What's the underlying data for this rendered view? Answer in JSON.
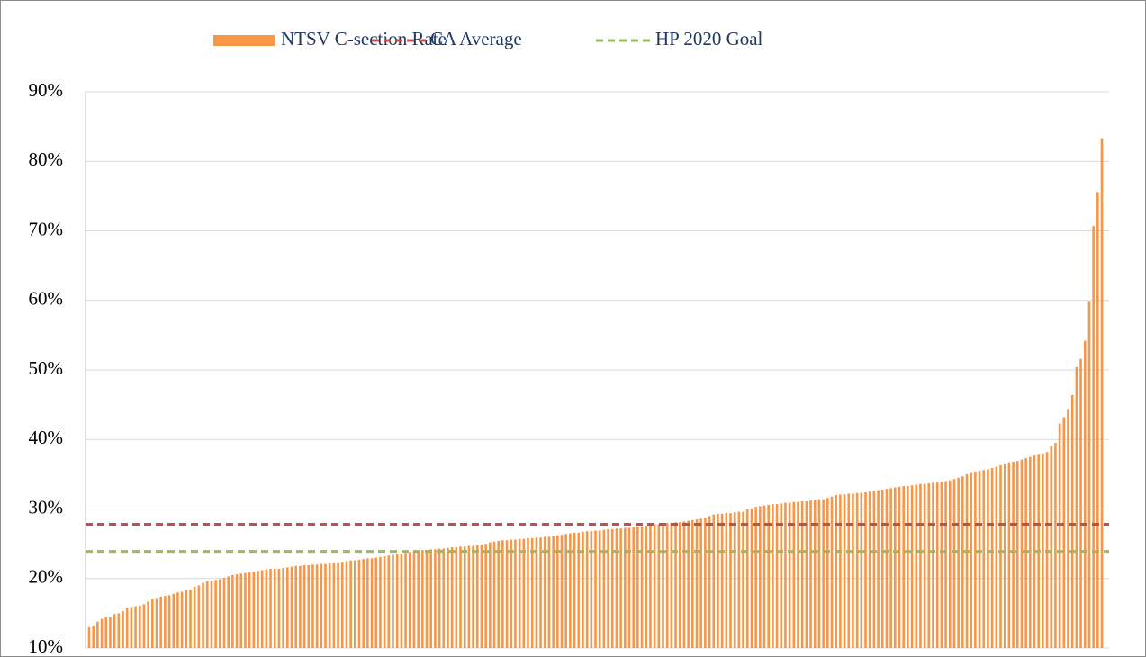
{
  "chart_data": {
    "type": "bar",
    "series": [
      {
        "name": "NTSV C-section Rate",
        "color": "#f79646",
        "values": [
          13.0,
          13.2,
          13.8,
          14.2,
          14.4,
          14.5,
          14.9,
          15.0,
          15.3,
          15.8,
          15.9,
          16.0,
          16.1,
          16.3,
          16.7,
          17.0,
          17.2,
          17.4,
          17.5,
          17.6,
          17.8,
          18.0,
          18.1,
          18.3,
          18.4,
          18.8,
          19.0,
          19.4,
          19.6,
          19.7,
          19.8,
          19.9,
          20.1,
          20.3,
          20.5,
          20.6,
          20.7,
          20.8,
          20.9,
          21.0,
          21.1,
          21.2,
          21.3,
          21.4,
          21.4,
          21.4,
          21.5,
          21.6,
          21.7,
          21.8,
          21.8,
          21.9,
          21.9,
          22.0,
          22.0,
          22.1,
          22.1,
          22.2,
          22.3,
          22.3,
          22.4,
          22.5,
          22.6,
          22.6,
          22.7,
          22.8,
          22.9,
          22.9,
          23.0,
          23.1,
          23.2,
          23.3,
          23.4,
          23.5,
          23.6,
          23.7,
          23.8,
          23.9,
          24.0,
          24.1,
          24.1,
          24.2,
          24.2,
          24.3,
          24.3,
          24.4,
          24.5,
          24.5,
          24.6,
          24.6,
          24.7,
          24.7,
          24.8,
          24.9,
          25.0,
          25.2,
          25.3,
          25.4,
          25.5,
          25.5,
          25.6,
          25.6,
          25.7,
          25.7,
          25.8,
          25.8,
          25.9,
          25.9,
          26.0,
          26.0,
          26.1,
          26.2,
          26.3,
          26.4,
          26.5,
          26.6,
          26.6,
          26.7,
          26.8,
          26.8,
          26.9,
          26.9,
          27.0,
          27.1,
          27.1,
          27.2,
          27.2,
          27.3,
          27.3,
          27.4,
          27.5,
          27.5,
          27.6,
          27.7,
          27.8,
          27.8,
          27.9,
          28.0,
          28.0,
          28.1,
          28.1,
          28.2,
          28.3,
          28.4,
          28.5,
          28.6,
          28.7,
          29.0,
          29.2,
          29.3,
          29.3,
          29.4,
          29.4,
          29.5,
          29.6,
          29.6,
          30.0,
          30.1,
          30.3,
          30.4,
          30.5,
          30.6,
          30.7,
          30.7,
          30.8,
          30.9,
          30.9,
          31.0,
          31.0,
          31.1,
          31.1,
          31.2,
          31.3,
          31.4,
          31.4,
          31.6,
          31.8,
          32.0,
          32.1,
          32.1,
          32.2,
          32.2,
          32.3,
          32.3,
          32.4,
          32.5,
          32.6,
          32.7,
          32.8,
          32.9,
          33.0,
          33.1,
          33.2,
          33.3,
          33.3,
          33.4,
          33.5,
          33.6,
          33.6,
          33.7,
          33.8,
          33.8,
          33.9,
          34.0,
          34.1,
          34.3,
          34.5,
          34.7,
          35.0,
          35.3,
          35.4,
          35.5,
          35.6,
          35.7,
          35.9,
          36.1,
          36.3,
          36.5,
          36.7,
          36.8,
          36.9,
          37.1,
          37.3,
          37.5,
          37.7,
          37.9,
          38.0,
          38.2,
          39.0,
          39.5,
          42.3,
          43.2,
          44.4,
          46.4,
          50.4,
          51.6,
          54.2,
          59.9,
          70.7,
          75.6,
          83.3
        ]
      }
    ],
    "reference_lines": [
      {
        "name": "CA Average",
        "color": "#c0504d",
        "value": 27.8
      },
      {
        "name": "HP 2020 Goal",
        "color": "#9bbb59",
        "value": 23.9
      }
    ],
    "ylim": [
      10,
      90
    ],
    "yticks": [
      {
        "value": 10,
        "label": "10%"
      },
      {
        "value": 20,
        "label": "20%"
      },
      {
        "value": 30,
        "label": "30%"
      },
      {
        "value": 40,
        "label": "40%"
      },
      {
        "value": 50,
        "label": "50%"
      },
      {
        "value": 60,
        "label": "60%"
      },
      {
        "value": 70,
        "label": "70%"
      },
      {
        "value": 80,
        "label": "80%"
      },
      {
        "value": 90,
        "label": "90%"
      }
    ],
    "grid": true,
    "legend": "top"
  }
}
